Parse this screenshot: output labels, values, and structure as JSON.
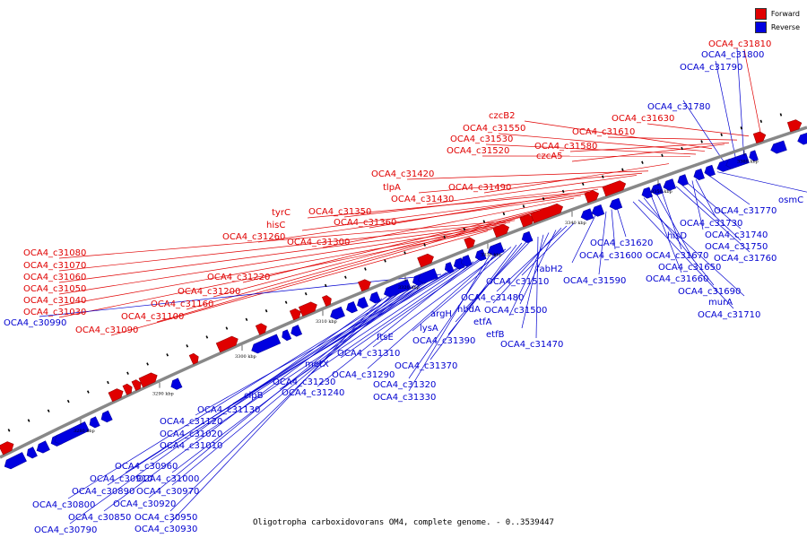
{
  "caption": "Oligotropha carboxidovorans OM4, complete genome. - 0..3539447",
  "legend": [
    {
      "label": "Forward",
      "color": "#e00000"
    },
    {
      "label": "Reverse",
      "color": "#0000e0"
    }
  ],
  "ticks": [
    "3280 kbp",
    "3290 kbp",
    "3300 kbp",
    "3310 kbp",
    "3320 kbp",
    "3330 kbp",
    "3340 kbp",
    "3350 kbp",
    "3360 kbp"
  ],
  "forward_labels": [
    "OCA4_c31810",
    "OCA4_c31630",
    "OCA4_c31610",
    "OCA4_c31580",
    "czcA5",
    "czcB2",
    "OCA4_c31550",
    "OCA4_c31530",
    "OCA4_c31520",
    "OCA4_c31490",
    "OCA4_c31420",
    "tlpA",
    "OCA4_c31430",
    "OCA4_c31350",
    "OCA4_c31360",
    "tyrC",
    "hisC",
    "OCA4_c31260",
    "OCA4_c31300",
    "OCA4_c31220",
    "OCA4_c31200",
    "OCA4_c31160",
    "OCA4_c31100",
    "OCA4_c31080",
    "OCA4_c31070",
    "OCA4_c31060",
    "OCA4_c31050",
    "OCA4_c31040",
    "OCA4_c31030",
    "OCA4_c31090"
  ],
  "reverse_labels": [
    "OCA4_c31800",
    "OCA4_c31790",
    "OCA4_c31780",
    "osmC",
    "OCA4_c31770",
    "OCA4_c31730",
    "hisD",
    "OCA4_c31740",
    "OCA4_c31750",
    "OCA4_c31760",
    "OCA4_c31670",
    "OCA4_c31650",
    "OCA4_c31660",
    "OCA4_c31690",
    "murA",
    "OCA4_c31710",
    "OCA4_c31620",
    "OCA4_c31600",
    "OCA4_c31590",
    "fabH2",
    "OCA4_c31510",
    "OCA4_c31480",
    "hbdA",
    "OCA4_c31500",
    "etfA",
    "etfB",
    "OCA4_c31470",
    "argH",
    "lysA",
    "OCA4_c31390",
    "OCA4_c31370",
    "ftsE",
    "OCA4_c31310",
    "OCA4_c31290",
    "OCA4_c31320",
    "OCA4_c31330",
    "metX",
    "OCA4_c31230",
    "OCA4_c31240",
    "clpB",
    "OCA4_c31130",
    "OCA4_c31120",
    "OCA4_c31020",
    "OCA4_c31010",
    "OCA4_c30990",
    "OCA4_c30960",
    "OCA4_c30910",
    "OCA4_c31000",
    "OCA4_c30890",
    "OCA4_c30970",
    "OCA4_c30800",
    "OCA4_c30920",
    "OCA4_c30850",
    "OCA4_c30950",
    "OCA4_c30790",
    "OCA4_c30930"
  ]
}
